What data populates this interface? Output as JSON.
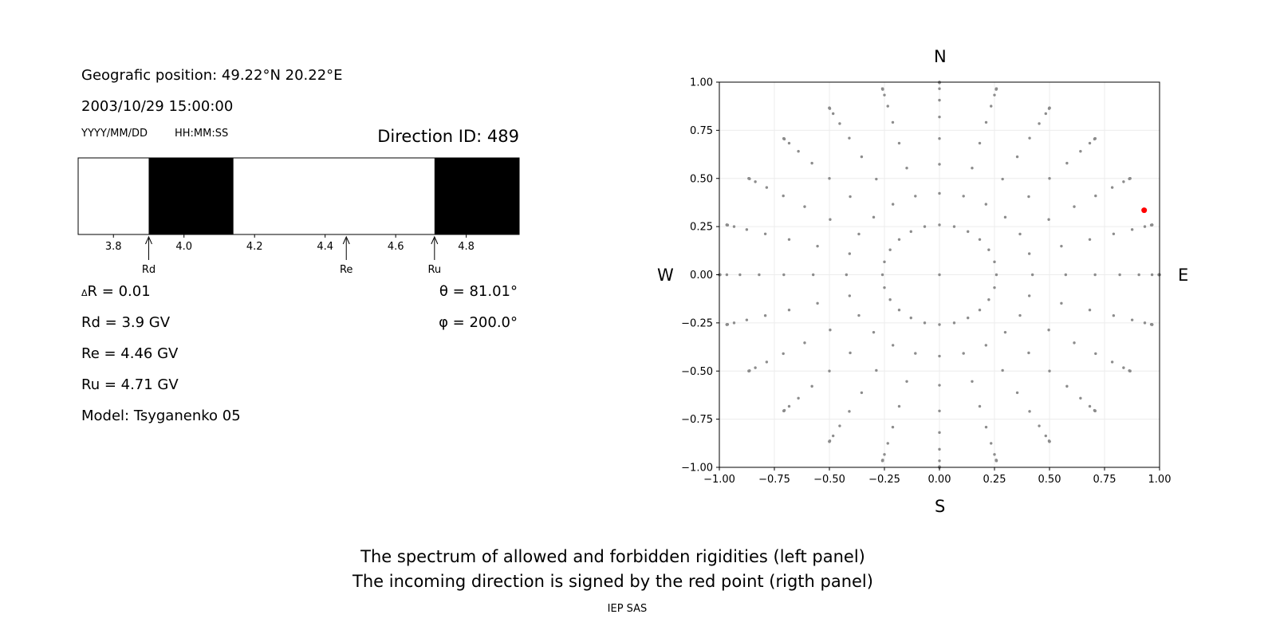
{
  "left_panel": {
    "geo_label": "Geografic position: 49.22°N 20.22°E",
    "datetime": "2003/10/29 15:00:00",
    "date_format": "YYYY/MM/DD",
    "time_format": "HH:MM:SS",
    "direction_id": "Direction ID: 489",
    "delta_r": "R = 0.01",
    "delta_symbol": "Δ",
    "rd": "Rd = 3.9 GV",
    "re": "Re = 4.46 GV",
    "ru": "Ru = 4.71 GV",
    "model": "Model: Tsyganenko 05",
    "theta": "θ = 81.01°",
    "phi": "φ = 200.0°"
  },
  "caption": {
    "line1": "The spectrum of allowed and forbidden rigidities (left panel)",
    "line2": "The incoming direction is signed by the red point (rigth panel)",
    "credit": "IEP SAS"
  },
  "compass": {
    "north": "N",
    "south": "S",
    "west": "W",
    "east": "E"
  },
  "chart_data": [
    {
      "type": "bar",
      "description_role": "rigidity spectrum (black = forbidden, white = allowed)",
      "xlim": [
        3.7,
        4.95
      ],
      "xticks": [
        3.8,
        4.0,
        4.2,
        4.4,
        4.6,
        4.8
      ],
      "xtick_labels": [
        "3.8",
        "4.0",
        "4.2",
        "4.4",
        "4.6",
        "4.8"
      ],
      "forbidden_bands": [
        [
          3.9,
          4.14
        ],
        [
          4.71,
          4.95
        ]
      ],
      "markers": [
        {
          "name": "Rd",
          "value": 3.9
        },
        {
          "name": "Re",
          "value": 4.46
        },
        {
          "name": "Ru",
          "value": 4.71
        }
      ],
      "colors": {
        "forbidden": "#000000",
        "allowed": "#ffffff"
      }
    },
    {
      "type": "scatter",
      "xlim": [
        -1.0,
        1.0
      ],
      "ylim": [
        -1.0,
        1.0
      ],
      "xticks": [
        -1.0,
        -0.75,
        -0.5,
        -0.25,
        0.0,
        0.25,
        0.5,
        0.75,
        1.0
      ],
      "yticks": [
        -1.0,
        -0.75,
        -0.5,
        -0.25,
        0.0,
        0.25,
        0.5,
        0.75,
        1.0
      ],
      "xtick_labels": [
        "−1.00",
        "−0.75",
        "−0.50",
        "−0.25",
        "0.00",
        "0.25",
        "0.50",
        "0.75",
        "1.00"
      ],
      "ytick_labels": [
        "−1.00",
        "−0.75",
        "−0.50",
        "−0.25",
        "0.00",
        "0.25",
        "0.50",
        "0.75",
        "1.00"
      ],
      "grid": true,
      "grid_series": {
        "theta_deg": [
          0,
          15,
          25,
          35,
          45,
          55,
          65,
          75,
          85,
          90
        ],
        "phi_step_deg": 15,
        "color": "#8c8c8c"
      },
      "highlight": {
        "x": 0.93,
        "y": 0.335,
        "color": "#ff0000"
      }
    }
  ]
}
